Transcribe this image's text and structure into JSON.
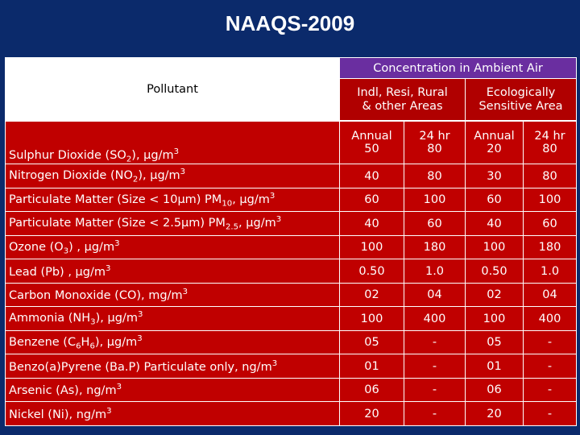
{
  "title": "NAAQS-2009",
  "header": {
    "pollutant": "Pollutant",
    "concentration": "Concentration in Ambient Air",
    "area1_line1": "Indl, Resi, Rural",
    "area1_line2": "& other Areas",
    "area2_line1": "Ecologically",
    "area2_line2": "Sensitive Area",
    "annual": "Annual",
    "hr24": "24 hr"
  },
  "rows": [
    {
      "name_pre": "Sulphur Dioxide (SO",
      "sub": "2",
      "name_post": "), μg/m",
      "sup": "3",
      "v1": "50",
      "v2": "80",
      "v3": "20",
      "v4": "80"
    },
    {
      "name_pre": "Nitrogen Dioxide (NO",
      "sub": "2",
      "name_post": "), μg/m",
      "sup": "3",
      "v1": "40",
      "v2": "80",
      "v3": "30",
      "v4": "80"
    },
    {
      "name_pre": "Particulate Matter (Size < 10μm) PM",
      "sub": "10",
      "name_post": ", μg/m",
      "sup": "3",
      "v1": "60",
      "v2": "100",
      "v3": "60",
      "v4": "100"
    },
    {
      "name_pre": "Particulate Matter (Size < 2.5μm) PM",
      "sub": "2.5",
      "name_post": ", μg/m",
      "sup": "3",
      "v1": "40",
      "v2": "60",
      "v3": "40",
      "v4": "60"
    },
    {
      "name_pre": "Ozone (O",
      "sub": "3",
      "name_post": ") , μg/m",
      "sup": "3",
      "v1": "100",
      "v2": "180",
      "v3": "100",
      "v4": "180"
    },
    {
      "name_pre": "Lead (Pb) , μg/m",
      "sub": "",
      "name_post": "",
      "sup": "3",
      "v1": "0.50",
      "v2": "1.0",
      "v3": "0.50",
      "v4": "1.0"
    },
    {
      "name_pre": "Carbon Monoxide (CO), mg/m",
      "sub": "",
      "name_post": "",
      "sup": "3",
      "v1": "02",
      "v2": "04",
      "v3": "02",
      "v4": "04"
    },
    {
      "name_pre": "Ammonia (NH",
      "sub": "3",
      "name_post": "), μg/m",
      "sup": "3",
      "v1": "100",
      "v2": "400",
      "v3": "100",
      "v4": "400"
    },
    {
      "name_pre": "Benzene (C",
      "sub": "6",
      "name_mid": "H",
      "sub2": "6",
      "name_post": "), μg/m",
      "sup": "3",
      "v1": "05",
      "v2": "-",
      "v3": "05",
      "v4": "-"
    },
    {
      "name_pre": "Benzo(a)Pyrene (Ba.P) Particulate only, ng/m",
      "sub": "",
      "name_post": "",
      "sup": "3",
      "v1": "01",
      "v2": "-",
      "v3": "01",
      "v4": "-"
    },
    {
      "name_pre": "Arsenic (As), ng/m",
      "sub": "",
      "name_post": "",
      "sup": "3",
      "v1": "06",
      "v2": "-",
      "v3": "06",
      "v4": "-"
    },
    {
      "name_pre": "Nickel (Ni), ng/m",
      "sub": "",
      "name_post": "",
      "sup": "3",
      "v1": "20",
      "v2": "-",
      "v3": "20",
      "v4": "-"
    }
  ]
}
